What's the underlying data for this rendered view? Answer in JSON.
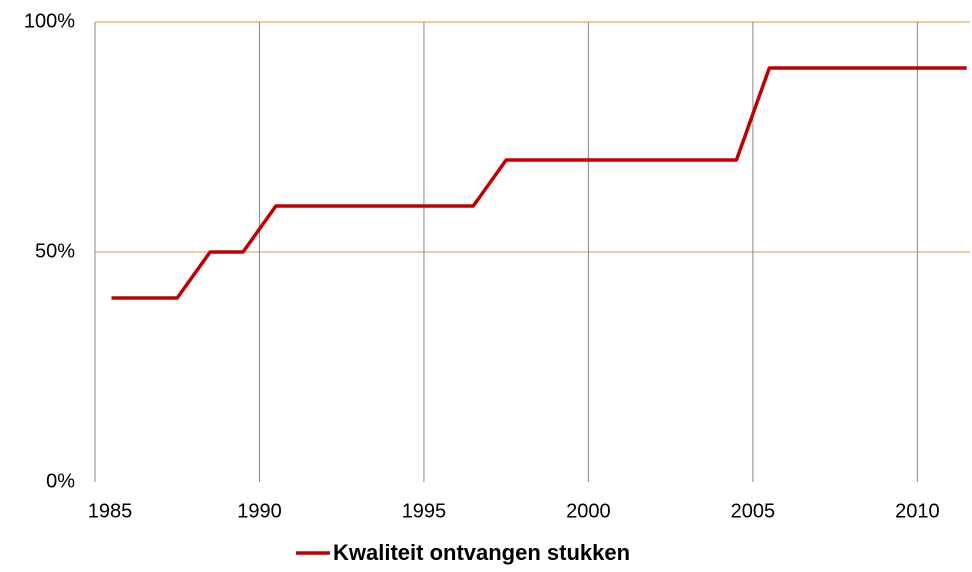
{
  "chart_data": {
    "type": "line",
    "x": [
      1985.5,
      1986.5,
      1987.5,
      1988.5,
      1989.5,
      1990.5,
      1991.5,
      1992.5,
      1993.5,
      1994.5,
      1995.5,
      1996.5,
      1997.5,
      1998.5,
      1999.5,
      2000.5,
      2001.5,
      2002.5,
      2003.5,
      2004.5,
      2005.5,
      2006.5,
      2007.5,
      2008.5,
      2009.5,
      2010.5,
      2011.5
    ],
    "series": [
      {
        "name": "Kwaliteit ontvangen stukken",
        "color": "#c00000",
        "values": [
          40,
          40,
          40,
          50,
          50,
          60,
          60,
          60,
          60,
          60,
          60,
          60,
          70,
          70,
          70,
          70,
          70,
          70,
          70,
          70,
          90,
          90,
          90,
          90,
          90,
          90,
          90
        ]
      }
    ],
    "xlim": [
      1985,
      2011.6
    ],
    "xticks": [
      1985,
      1990,
      1995,
      2000,
      2005,
      2010
    ],
    "ylim": [
      0,
      100
    ],
    "yticks": [
      {
        "value": 0,
        "label": "0%"
      },
      {
        "value": 50,
        "label": "50%"
      },
      {
        "value": 100,
        "label": "100%"
      }
    ],
    "grid": true,
    "legend": "bottom"
  }
}
